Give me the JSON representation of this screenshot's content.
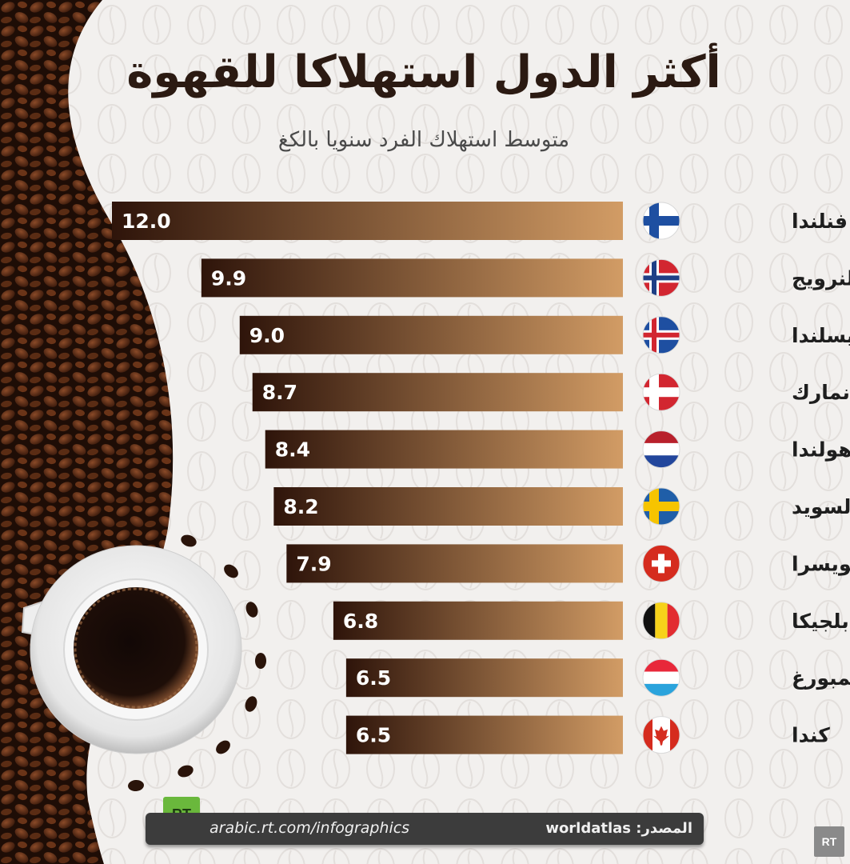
{
  "header": {
    "title": "أكثر الدول استهلاكا للقهوة",
    "subtitle": "متوسط استهلاك الفرد سنويا بالكغ"
  },
  "chart_data": {
    "type": "bar",
    "orientation": "horizontal",
    "title": "أكثر الدول استهلاكا للقهوة",
    "subtitle": "متوسط استهلاك الفرد سنويا بالكغ",
    "categories": [
      "فنلندا",
      "النرويج",
      "أيسلندا",
      "الدنمارك",
      "هولندا",
      "السويد",
      "سويسرا",
      "بلجيكا",
      "لوكسمبورغ",
      "كندا"
    ],
    "values": [
      12.0,
      9.9,
      9.0,
      8.7,
      8.4,
      8.2,
      7.9,
      6.8,
      6.5,
      6.5
    ],
    "value_labels": [
      "12.0",
      "9.9",
      "9.0",
      "8.7",
      "8.4",
      "8.2",
      "7.9",
      "6.8",
      "6.5",
      "6.5"
    ],
    "flags": [
      "finland-flag-icon",
      "norway-flag-icon",
      "iceland-flag-icon",
      "denmark-flag-icon",
      "netherlands-flag-icon",
      "sweden-flag-icon",
      "switzerland-flag-icon",
      "belgium-flag-icon",
      "luxembourg-flag-icon",
      "canada-flag-icon"
    ],
    "bar_gradient": [
      "#2e140a",
      "#d29c65"
    ]
  },
  "footer": {
    "logo": "RT",
    "url": "arabic.rt.com/infographics",
    "source": "المصدر: worldatlas"
  },
  "corner_logo": "RT"
}
